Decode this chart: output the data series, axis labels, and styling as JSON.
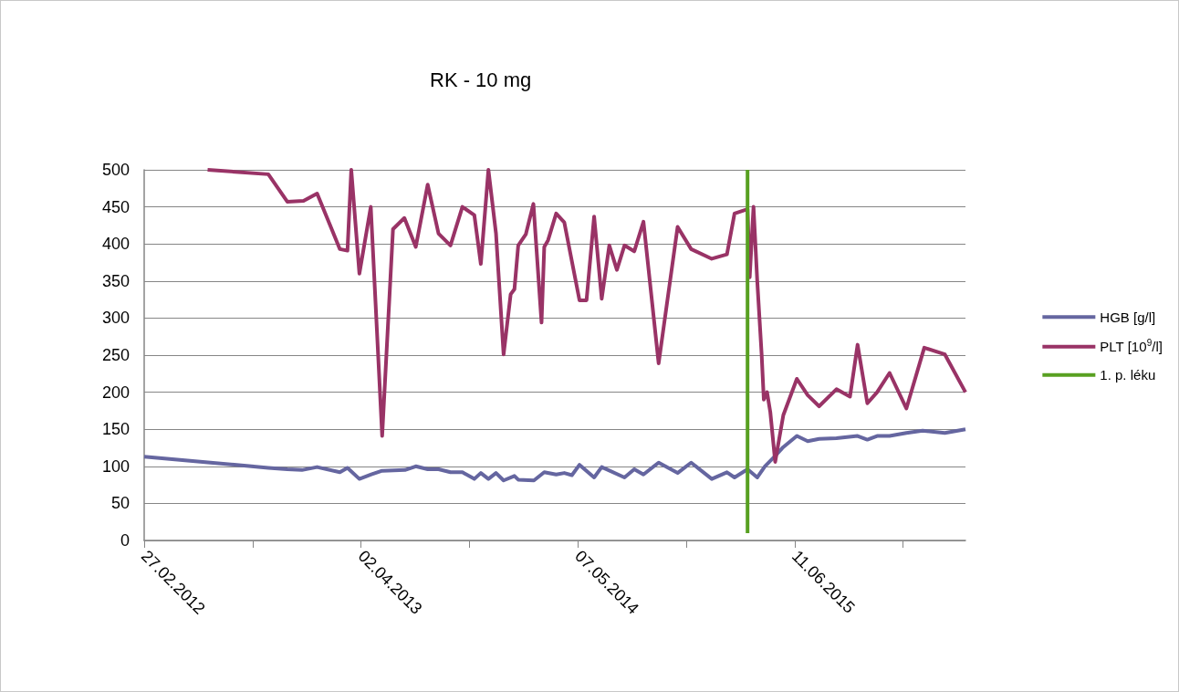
{
  "chart_data": {
    "type": "line",
    "title": "RK - 10 mg",
    "xlim": [
      "2012-02-27",
      "2016-04-21"
    ],
    "xticks": [
      {
        "value": "2012-02-27",
        "label": "27.02.2012"
      },
      {
        "value": "2012-09-14",
        "label": null
      },
      {
        "value": "2013-04-02",
        "label": "02.04.2013"
      },
      {
        "value": "2013-10-19",
        "label": null
      },
      {
        "value": "2014-05-07",
        "label": "07.05.2014"
      },
      {
        "value": "2014-11-23",
        "label": null
      },
      {
        "value": "2015-06-11",
        "label": "11.06.2015"
      },
      {
        "value": "2015-12-28",
        "label": null
      }
    ],
    "ylim": [
      0,
      500
    ],
    "yticks": [
      0,
      50,
      100,
      150,
      200,
      250,
      300,
      350,
      400,
      450,
      500
    ],
    "grid": "y",
    "legend": "right",
    "marker": "none",
    "line_style": "solid",
    "series": [
      {
        "name": "HGB [g/l]",
        "color": "#6566a0",
        "x": [
          "2012-02-27",
          "2012-10-13",
          "2012-11-17",
          "2012-12-14",
          "2013-01-11",
          "2013-02-22",
          "2013-03-08",
          "2013-03-30",
          "2013-04-21",
          "2013-05-11",
          "2013-06-22",
          "2013-07-12",
          "2013-08-03",
          "2013-08-23",
          "2013-09-14",
          "2013-10-06",
          "2013-10-28",
          "2013-11-09",
          "2013-11-23",
          "2013-12-07",
          "2013-12-21",
          "2014-01-10",
          "2014-01-17",
          "2014-02-15",
          "2014-03-06",
          "2014-03-28",
          "2014-04-12",
          "2014-04-26",
          "2014-05-10",
          "2014-06-06",
          "2014-06-20",
          "2014-08-01",
          "2014-08-19",
          "2014-09-05",
          "2014-10-03",
          "2014-11-07",
          "2014-12-02",
          "2015-01-09",
          "2015-02-06",
          "2015-02-20",
          "2015-03-16",
          "2015-04-03",
          "2015-04-17",
          "2015-05-06",
          "2015-05-21",
          "2015-06-15",
          "2015-07-05",
          "2015-07-26",
          "2015-08-27",
          "2015-10-05",
          "2015-10-23",
          "2015-11-10",
          "2015-12-03",
          "2016-01-03",
          "2016-02-02",
          "2016-03-14",
          "2016-04-21"
        ],
        "values": [
          113,
          98,
          96,
          95,
          99,
          92,
          98,
          83,
          89,
          94,
          95,
          100,
          96,
          96,
          92,
          92,
          83,
          91,
          83,
          91,
          81,
          87,
          82,
          81,
          92,
          89,
          91,
          88,
          102,
          85,
          99,
          85,
          96,
          89,
          105,
          91,
          105,
          83,
          92,
          85,
          96,
          85,
          100,
          114,
          126,
          141,
          134,
          137,
          138,
          141,
          136,
          141,
          141,
          145,
          148,
          145,
          150
        ]
      },
      {
        "name": "PLT [10$^{9}$/l]",
        "color": "#993366",
        "x": [
          "2012-06-23",
          "2012-10-13",
          "2012-11-17",
          "2012-12-17",
          "2013-01-11",
          "2013-02-22",
          "2013-03-08",
          "2013-03-15",
          "2013-03-30",
          "2013-04-20",
          "2013-05-11",
          "2013-05-31",
          "2013-06-21",
          "2013-07-12",
          "2013-08-03",
          "2013-08-23",
          "2013-09-14",
          "2013-10-06",
          "2013-10-28",
          "2013-11-09",
          "2013-11-23",
          "2013-12-07",
          "2013-12-21",
          "2014-01-03",
          "2014-01-10",
          "2014-01-17",
          "2014-01-31",
          "2014-02-14",
          "2014-03-01",
          "2014-03-06",
          "2014-03-13",
          "2014-03-28",
          "2014-04-12",
          "2014-05-10",
          "2014-05-23",
          "2014-06-06",
          "2014-06-20",
          "2014-07-04",
          "2014-07-18",
          "2014-08-01",
          "2014-08-19",
          "2014-09-05",
          "2014-10-03",
          "2014-11-07",
          "2014-12-02",
          "2015-01-09",
          "2015-02-06",
          "2015-02-20",
          "2015-03-16",
          "2015-03-20",
          "2015-03-27",
          "2015-04-03",
          "2015-04-11",
          "2015-04-15",
          "2015-04-21",
          "2015-04-27",
          "2015-05-06",
          "2015-05-21",
          "2015-06-15",
          "2015-07-05",
          "2015-07-26",
          "2015-08-27",
          "2015-09-21",
          "2015-10-05",
          "2015-10-23",
          "2015-11-10",
          "2015-12-03",
          "2016-01-03",
          "2016-02-05",
          "2016-03-14",
          "2016-04-21"
        ],
        "values": [
          500,
          494,
          457,
          458,
          468,
          393,
          391,
          500,
          360,
          450,
          141,
          420,
          435,
          396,
          480,
          414,
          398,
          450,
          439,
          373,
          500,
          414,
          251,
          332,
          339,
          398,
          413,
          454,
          294,
          396,
          405,
          441,
          429,
          324,
          324,
          437,
          326,
          398,
          365,
          398,
          390,
          430,
          239,
          423,
          393,
          380,
          386,
          441,
          447,
          355,
          450,
          349,
          251,
          190,
          200,
          173,
          106,
          169,
          218,
          196,
          181,
          204,
          194,
          264,
          185,
          200,
          226,
          178,
          260,
          251,
          200
        ]
      },
      {
        "name": "1. p. léku",
        "color": "#58a021",
        "x": [
          "2015-03-16",
          "2015-03-16"
        ],
        "values": [
          10,
          500
        ]
      }
    ]
  }
}
